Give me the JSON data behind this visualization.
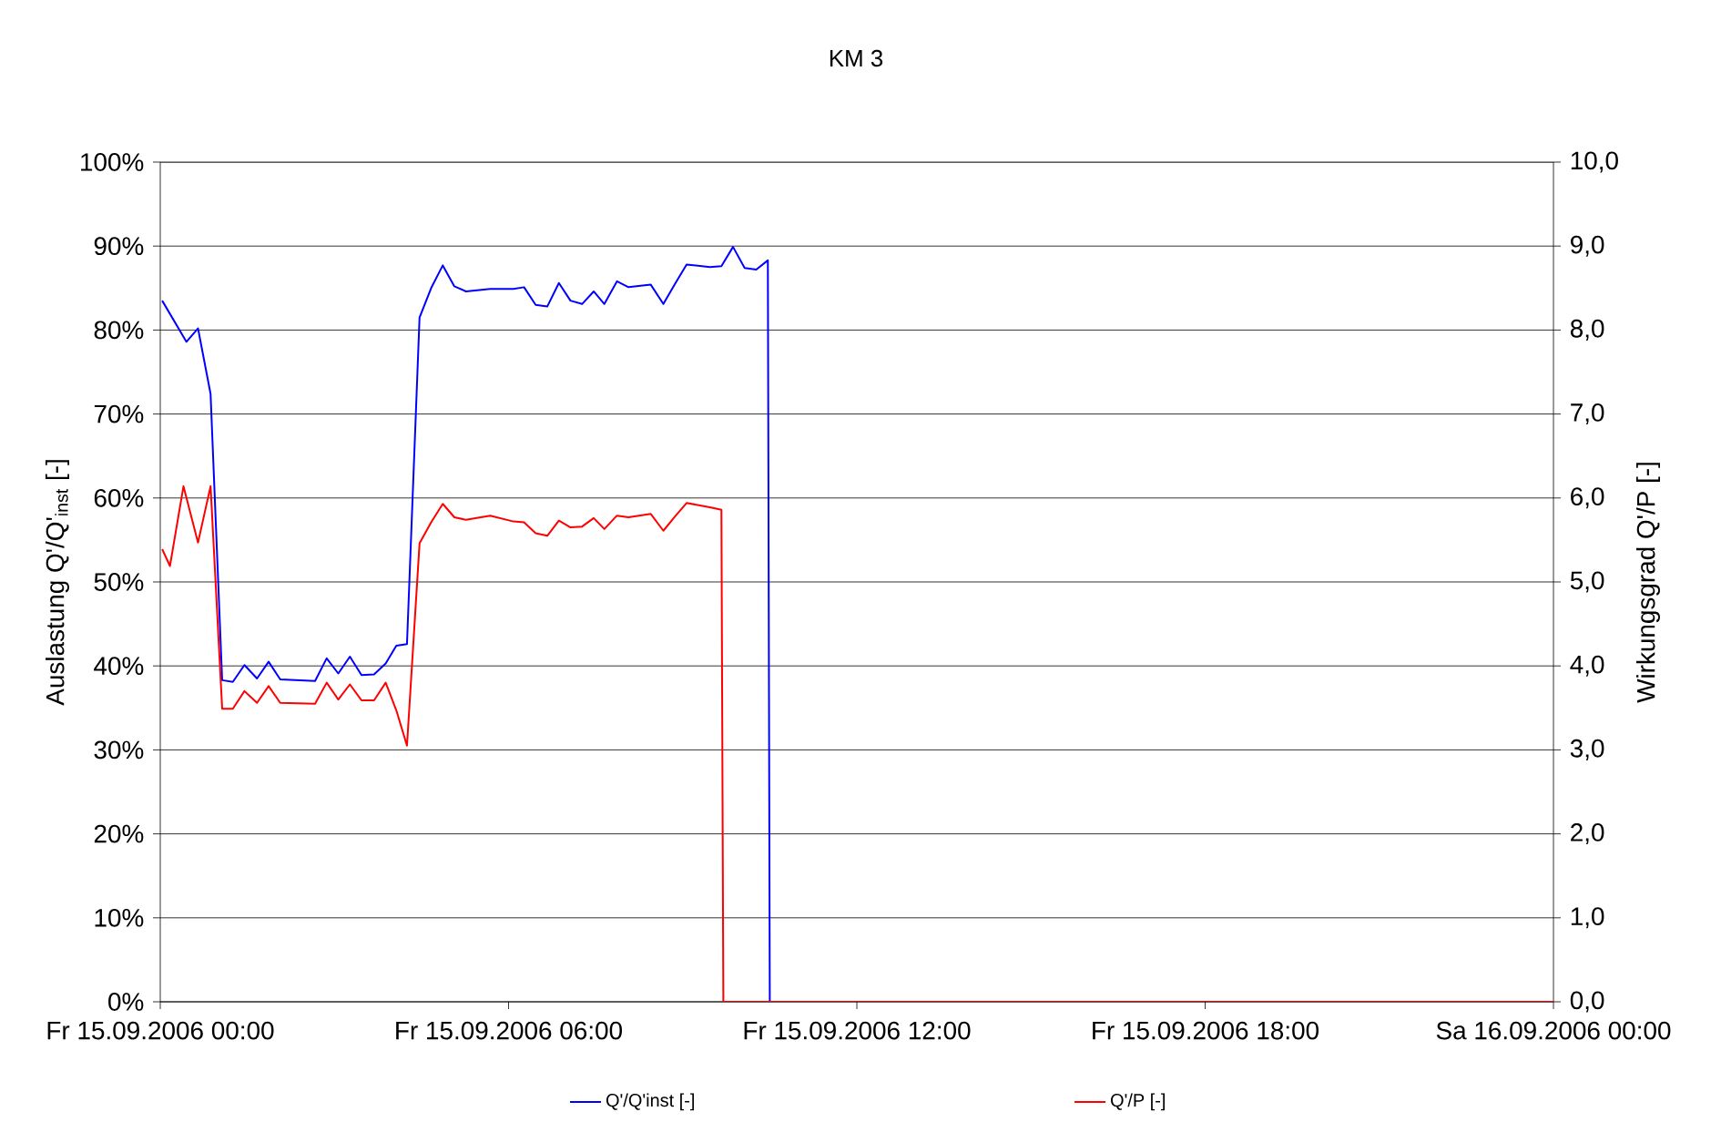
{
  "chart_data": {
    "type": "line",
    "title": "KM 3",
    "ylabel": "Auslastung Q'/Q'$_{inst}$ [-]",
    "y2label": "Wirkungsgrad Q'/P [-]",
    "xlim": [
      "2006-09-15T00:00",
      "2006-09-16T00:00"
    ],
    "xticks": [
      {
        "value": "2006-09-15T00:00",
        "label": "Fr 15.09.2006 00:00"
      },
      {
        "value": "2006-09-15T06:00",
        "label": "Fr 15.09.2006 06:00"
      },
      {
        "value": "2006-09-15T12:00",
        "label": "Fr 15.09.2006 12:00"
      },
      {
        "value": "2006-09-15T18:00",
        "label": "Fr 15.09.2006 18:00"
      },
      {
        "value": "2006-09-16T00:00",
        "label": "Sa 16.09.2006 00:00"
      }
    ],
    "ylim": [
      0,
      100
    ],
    "yticks": [
      {
        "value": 0,
        "label": "0%"
      },
      {
        "value": 10,
        "label": "10%"
      },
      {
        "value": 20,
        "label": "20%"
      },
      {
        "value": 30,
        "label": "30%"
      },
      {
        "value": 40,
        "label": "40%"
      },
      {
        "value": 50,
        "label": "50%"
      },
      {
        "value": 60,
        "label": "60%"
      },
      {
        "value": 70,
        "label": "70%"
      },
      {
        "value": 80,
        "label": "80%"
      },
      {
        "value": 90,
        "label": "90%"
      },
      {
        "value": 100,
        "label": "100%"
      }
    ],
    "y2lim": [
      0,
      10
    ],
    "y2ticks": [
      {
        "value": 0,
        "label": "0,0"
      },
      {
        "value": 1,
        "label": "1,0"
      },
      {
        "value": 2,
        "label": "2,0"
      },
      {
        "value": 3,
        "label": "3,0"
      },
      {
        "value": 4,
        "label": "4,0"
      },
      {
        "value": 5,
        "label": "5,0"
      },
      {
        "value": 6,
        "label": "6,0"
      },
      {
        "value": 7,
        "label": "7,0"
      },
      {
        "value": 8,
        "label": "8,0"
      },
      {
        "value": 9,
        "label": "9,0"
      },
      {
        "value": 10,
        "label": "10,0"
      }
    ],
    "grid": "y",
    "legend": "bottom",
    "marker": "none",
    "line_style": "solid",
    "series": [
      {
        "name": "Q'/Q'inst [-]",
        "color": "#0000ff",
        "x": [
          "2006-09-15T00:02",
          "2006-09-15T00:27",
          "2006-09-15T00:39",
          "2006-09-15T00:52",
          "2006-09-15T01:04",
          "2006-09-15T01:15",
          "2006-09-15T01:27",
          "2006-09-15T01:40",
          "2006-09-15T01:52",
          "2006-09-15T02:04",
          "2006-09-15T02:40",
          "2006-09-15T02:52",
          "2006-09-15T03:04",
          "2006-09-15T03:16",
          "2006-09-15T03:28",
          "2006-09-15T03:41",
          "2006-09-15T03:53",
          "2006-09-15T04:04",
          "2006-09-15T04:15",
          "2006-09-15T04:28",
          "2006-09-15T04:40",
          "2006-09-15T04:52",
          "2006-09-15T05:04",
          "2006-09-15T05:16",
          "2006-09-15T05:41",
          "2006-09-15T06:05",
          "2006-09-15T06:16",
          "2006-09-15T06:28",
          "2006-09-15T06:40",
          "2006-09-15T06:52",
          "2006-09-15T07:04",
          "2006-09-15T07:16",
          "2006-09-15T07:28",
          "2006-09-15T07:39",
          "2006-09-15T07:52",
          "2006-09-15T08:04",
          "2006-09-15T08:27",
          "2006-09-15T08:40",
          "2006-09-15T08:52",
          "2006-09-15T09:04",
          "2006-09-15T09:28",
          "2006-09-15T09:40",
          "2006-09-15T09:52",
          "2006-09-15T10:04",
          "2006-09-15T10:16",
          "2006-09-15T10:28",
          "2006-09-15T10:30",
          "2006-09-16T00:00"
        ],
        "values": [
          83.5,
          78.6,
          80.2,
          72.4,
          38.3,
          38.1,
          40.1,
          38.5,
          40.5,
          38.4,
          38.2,
          40.9,
          39.1,
          41.1,
          38.9,
          39.0,
          40.3,
          42.4,
          42.6,
          81.5,
          85.0,
          87.7,
          85.2,
          84.6,
          84.9,
          84.9,
          85.1,
          83.0,
          82.8,
          85.6,
          83.5,
          83.1,
          84.6,
          83.1,
          85.8,
          85.1,
          85.4,
          83.1,
          85.5,
          87.8,
          87.5,
          87.6,
          89.9,
          87.4,
          87.2,
          88.3,
          0,
          0
        ]
      },
      {
        "name": "Q'/P [-]",
        "color": "#ff0000",
        "axis": "y2",
        "x": [
          "2006-09-15T00:02",
          "2006-09-15T00:10",
          "2006-09-15T00:24",
          "2006-09-15T00:39",
          "2006-09-15T00:52",
          "2006-09-15T01:04",
          "2006-09-15T01:15",
          "2006-09-15T01:27",
          "2006-09-15T01:40",
          "2006-09-15T01:52",
          "2006-09-15T02:04",
          "2006-09-15T02:40",
          "2006-09-15T02:52",
          "2006-09-15T03:04",
          "2006-09-15T03:16",
          "2006-09-15T03:28",
          "2006-09-15T03:41",
          "2006-09-15T03:53",
          "2006-09-15T04:04",
          "2006-09-15T04:15",
          "2006-09-15T04:28",
          "2006-09-15T04:40",
          "2006-09-15T04:52",
          "2006-09-15T05:04",
          "2006-09-15T05:16",
          "2006-09-15T05:41",
          "2006-09-15T06:05",
          "2006-09-15T06:16",
          "2006-09-15T06:28",
          "2006-09-15T06:40",
          "2006-09-15T06:52",
          "2006-09-15T07:04",
          "2006-09-15T07:16",
          "2006-09-15T07:28",
          "2006-09-15T07:39",
          "2006-09-15T07:52",
          "2006-09-15T08:04",
          "2006-09-15T08:27",
          "2006-09-15T08:40",
          "2006-09-15T08:52",
          "2006-09-15T09:04",
          "2006-09-15T09:28",
          "2006-09-15T09:40",
          "2006-09-15T09:42",
          "2006-09-16T00:00"
        ],
        "values": [
          5.39,
          5.19,
          6.14,
          5.47,
          6.14,
          3.49,
          3.49,
          3.7,
          3.56,
          3.76,
          3.56,
          3.55,
          3.8,
          3.6,
          3.78,
          3.59,
          3.59,
          3.8,
          3.47,
          3.05,
          5.46,
          5.71,
          5.93,
          5.77,
          5.74,
          5.79,
          5.72,
          5.71,
          5.58,
          5.55,
          5.73,
          5.65,
          5.66,
          5.76,
          5.63,
          5.79,
          5.77,
          5.81,
          5.61,
          5.78,
          5.94,
          5.89,
          5.86,
          0,
          0
        ]
      }
    ]
  }
}
